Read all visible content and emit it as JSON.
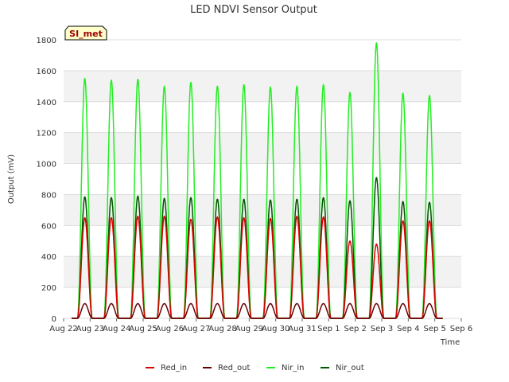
{
  "chart_data": {
    "type": "line",
    "title": "LED NDVI Sensor Output",
    "xlabel": "Time",
    "ylabel": "Output (mV)",
    "ylim": [
      0,
      1800
    ],
    "yticks": [
      0,
      200,
      400,
      600,
      800,
      1000,
      1200,
      1400,
      1600,
      1800
    ],
    "xlim": [
      0,
      15
    ],
    "xticks": [
      {
        "day": 0,
        "label": "Aug 22"
      },
      {
        "day": 1,
        "label": "Aug 23"
      },
      {
        "day": 2,
        "label": "Aug 24"
      },
      {
        "day": 3,
        "label": "Aug 25"
      },
      {
        "day": 4,
        "label": "Aug 26"
      },
      {
        "day": 5,
        "label": "Aug 27"
      },
      {
        "day": 6,
        "label": "Aug 28"
      },
      {
        "day": 7,
        "label": "Aug 29"
      },
      {
        "day": 8,
        "label": "Aug 30"
      },
      {
        "day": 9,
        "label": "Aug 31"
      },
      {
        "day": 10,
        "label": "Sep 1"
      },
      {
        "day": 11,
        "label": "Sep 2"
      },
      {
        "day": 12,
        "label": "Sep 3"
      },
      {
        "day": 13,
        "label": "Sep 4"
      },
      {
        "day": 14,
        "label": "Sep 5"
      },
      {
        "day": 15,
        "label": "Sep 6"
      }
    ],
    "grid": true,
    "legend_position": "bottom-center",
    "site_label": "SI_met",
    "data_range_days": [
      0.3,
      14.3
    ],
    "daily_peaks": {
      "days": [
        0.8,
        1.8,
        2.8,
        3.8,
        4.8,
        5.8,
        6.8,
        7.8,
        8.8,
        9.8,
        10.8,
        11.8,
        12.8,
        13.8
      ],
      "Red_in": [
        650,
        650,
        660,
        660,
        640,
        655,
        650,
        645,
        660,
        655,
        500,
        480,
        630,
        630
      ],
      "Red_out": [
        95,
        95,
        95,
        95,
        95,
        95,
        95,
        95,
        95,
        95,
        95,
        95,
        95,
        95
      ],
      "Nir_in": [
        1550,
        1540,
        1545,
        1500,
        1525,
        1500,
        1510,
        1495,
        1500,
        1510,
        1460,
        1780,
        1455,
        1440
      ],
      "Nir_out": [
        785,
        780,
        790,
        775,
        780,
        770,
        770,
        765,
        770,
        780,
        760,
        910,
        755,
        750
      ]
    },
    "series": [
      {
        "name": "Red_in",
        "color": "#dd0000"
      },
      {
        "name": "Red_out",
        "color": "#660000"
      },
      {
        "name": "Nir_in",
        "color": "#22ee22"
      },
      {
        "name": "Nir_out",
        "color": "#005500"
      }
    ]
  }
}
